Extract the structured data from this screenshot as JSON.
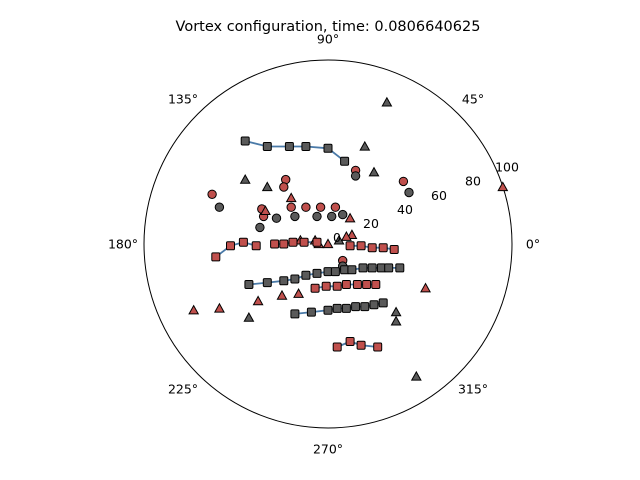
{
  "chart_data": {
    "type": "scatter",
    "projection": "polar",
    "title": "Vortex configuration, time: 0.0806640625",
    "rlim": [
      0,
      100
    ],
    "theta_ticks": [
      "0°",
      "45°",
      "90°",
      "135°",
      "180°",
      "225°",
      "270°",
      "315°"
    ],
    "r_ticks": [
      "0",
      "20",
      "40",
      "60",
      "80",
      "100"
    ],
    "grid": false,
    "colors": {
      "red": "#c0504d",
      "gray": "#5a5a5a",
      "line": "#4a7aa8",
      "edge": "#000000"
    },
    "series": [
      {
        "marker": "circle",
        "points": [
          {
            "x": -63,
            "y": 27,
            "c": "red"
          },
          {
            "x": -59,
            "y": 20,
            "c": "gray"
          },
          {
            "x": -23,
            "y": 35,
            "c": "red"
          },
          {
            "x": -24,
            "y": 31,
            "c": "red"
          },
          {
            "x": -36,
            "y": 19,
            "c": "red"
          },
          {
            "x": -28,
            "y": 14,
            "c": "gray"
          },
          {
            "x": -35,
            "y": 15,
            "c": "red"
          },
          {
            "x": -37,
            "y": 9,
            "c": "gray"
          },
          {
            "x": -20,
            "y": 20,
            "c": "red"
          },
          {
            "x": -18,
            "y": 15,
            "c": "gray"
          },
          {
            "x": -12,
            "y": 20,
            "c": "red"
          },
          {
            "x": -6,
            "y": 15,
            "c": "gray"
          },
          {
            "x": -4,
            "y": 20,
            "c": "red"
          },
          {
            "x": 2,
            "y": 15,
            "c": "gray"
          },
          {
            "x": 4,
            "y": 20,
            "c": "red"
          },
          {
            "x": 8,
            "y": 16,
            "c": "gray"
          },
          {
            "x": 15,
            "y": 40,
            "c": "red"
          },
          {
            "x": 15,
            "y": 37,
            "c": "gray"
          },
          {
            "x": 41,
            "y": 34,
            "c": "red"
          },
          {
            "x": 44,
            "y": 28,
            "c": "gray"
          },
          {
            "x": 8,
            "y": -9,
            "c": "red"
          },
          {
            "x": 8,
            "y": -12,
            "c": "gray"
          }
        ]
      },
      {
        "marker": "triangle",
        "points": [
          {
            "x": 32,
            "y": 77,
            "c": "gray"
          },
          {
            "x": 20,
            "y": 53,
            "c": "gray"
          },
          {
            "x": 25,
            "y": 39,
            "c": "gray"
          },
          {
            "x": -45,
            "y": 35,
            "c": "gray"
          },
          {
            "x": -33,
            "y": 31,
            "c": "gray"
          },
          {
            "x": -34,
            "y": 18,
            "c": "red"
          },
          {
            "x": -20,
            "y": 25,
            "c": "red"
          },
          {
            "x": 12,
            "y": 14,
            "c": "red"
          },
          {
            "x": 13,
            "y": 5,
            "c": "red"
          },
          {
            "x": -15,
            "y": 2,
            "c": "red"
          },
          {
            "x": -7,
            "y": 2,
            "c": "red"
          },
          {
            "x": -5,
            "y": 0,
            "c": "red"
          },
          {
            "x": 0,
            "y": 0,
            "c": "red"
          },
          {
            "x": 6,
            "y": 2,
            "c": "gray"
          },
          {
            "x": 10,
            "y": 4,
            "c": "red"
          },
          {
            "x": 95,
            "y": 31,
            "c": "red"
          },
          {
            "x": 53,
            "y": -24,
            "c": "red"
          },
          {
            "x": 37,
            "y": -37,
            "c": "gray"
          },
          {
            "x": -73,
            "y": -36,
            "c": "red"
          },
          {
            "x": -59,
            "y": -35,
            "c": "red"
          },
          {
            "x": -38,
            "y": -31,
            "c": "red"
          },
          {
            "x": -25,
            "y": -28,
            "c": "red"
          },
          {
            "x": -16,
            "y": -27,
            "c": "red"
          },
          {
            "x": -43,
            "y": -40,
            "c": "gray"
          },
          {
            "x": 37,
            "y": -42,
            "c": "gray"
          },
          {
            "x": 48,
            "y": -72,
            "c": "gray"
          }
        ]
      },
      {
        "marker": "square",
        "connected": true,
        "points": [
          {
            "x": -45,
            "y": 56,
            "c": "gray"
          },
          {
            "x": -33,
            "y": 53,
            "c": "gray"
          },
          {
            "x": -21,
            "y": 53,
            "c": "gray"
          },
          {
            "x": -12,
            "y": 53,
            "c": "gray"
          },
          {
            "x": 0,
            "y": 52,
            "c": "gray"
          },
          {
            "x": 9,
            "y": 45,
            "c": "gray"
          }
        ]
      },
      {
        "marker": "square",
        "connected": true,
        "points": [
          {
            "x": -61,
            "y": -7,
            "c": "red"
          },
          {
            "x": -53,
            "y": -1,
            "c": "red"
          },
          {
            "x": -46,
            "y": 1,
            "c": "red"
          },
          {
            "x": -39,
            "y": -1,
            "c": "red"
          }
        ]
      },
      {
        "marker": "square",
        "connected": true,
        "points": [
          {
            "x": -29,
            "y": 0,
            "c": "red"
          },
          {
            "x": -24,
            "y": 0,
            "c": "red"
          },
          {
            "x": -19,
            "y": 1,
            "c": "red"
          },
          {
            "x": -13,
            "y": 1,
            "c": "red"
          },
          {
            "x": -6,
            "y": 1,
            "c": "red"
          }
        ]
      },
      {
        "marker": "square",
        "connected": true,
        "points": [
          {
            "x": 12,
            "y": -1,
            "c": "red"
          },
          {
            "x": 18,
            "y": -1,
            "c": "red"
          },
          {
            "x": 24,
            "y": -2,
            "c": "red"
          },
          {
            "x": 30,
            "y": -2,
            "c": "red"
          },
          {
            "x": 36,
            "y": -3,
            "c": "red"
          }
        ]
      },
      {
        "marker": "square",
        "connected": true,
        "points": [
          {
            "x": -43,
            "y": -22,
            "c": "gray"
          },
          {
            "x": -33,
            "y": -21,
            "c": "gray"
          },
          {
            "x": -24,
            "y": -20,
            "c": "gray"
          },
          {
            "x": -18,
            "y": -19,
            "c": "gray"
          },
          {
            "x": -12,
            "y": -17,
            "c": "gray"
          },
          {
            "x": -6,
            "y": -16,
            "c": "gray"
          },
          {
            "x": 0,
            "y": -15,
            "c": "gray"
          },
          {
            "x": 4,
            "y": -15,
            "c": "gray"
          },
          {
            "x": 9,
            "y": -14,
            "c": "gray"
          },
          {
            "x": 13,
            "y": -14,
            "c": "gray"
          },
          {
            "x": 19,
            "y": -13,
            "c": "gray"
          },
          {
            "x": 24,
            "y": -13,
            "c": "gray"
          },
          {
            "x": 29,
            "y": -13,
            "c": "gray"
          },
          {
            "x": 33,
            "y": -13,
            "c": "gray"
          },
          {
            "x": 39,
            "y": -13,
            "c": "gray"
          }
        ]
      },
      {
        "marker": "square",
        "connected": true,
        "points": [
          {
            "x": -7,
            "y": -24,
            "c": "red"
          },
          {
            "x": -1,
            "y": -23,
            "c": "red"
          },
          {
            "x": 5,
            "y": -23,
            "c": "red"
          },
          {
            "x": 10,
            "y": -22,
            "c": "red"
          },
          {
            "x": 16,
            "y": -22,
            "c": "red"
          },
          {
            "x": 21,
            "y": -22,
            "c": "red"
          },
          {
            "x": 26,
            "y": -22,
            "c": "red"
          }
        ]
      },
      {
        "marker": "square",
        "connected": true,
        "points": [
          {
            "x": -18,
            "y": -38,
            "c": "gray"
          },
          {
            "x": -9,
            "y": -37,
            "c": "gray"
          },
          {
            "x": 0,
            "y": -36,
            "c": "gray"
          },
          {
            "x": 5,
            "y": -35,
            "c": "gray"
          },
          {
            "x": 10,
            "y": -35,
            "c": "gray"
          },
          {
            "x": 15,
            "y": -34,
            "c": "gray"
          },
          {
            "x": 20,
            "y": -34,
            "c": "gray"
          },
          {
            "x": 25,
            "y": -33,
            "c": "gray"
          },
          {
            "x": 30,
            "y": -32,
            "c": "gray"
          }
        ]
      },
      {
        "marker": "square",
        "connected": true,
        "points": [
          {
            "x": 5,
            "y": -56,
            "c": "red"
          },
          {
            "x": 12,
            "y": -53,
            "c": "red"
          },
          {
            "x": 18,
            "y": -55,
            "c": "red"
          },
          {
            "x": 27,
            "y": -56,
            "c": "red"
          }
        ]
      }
    ]
  }
}
